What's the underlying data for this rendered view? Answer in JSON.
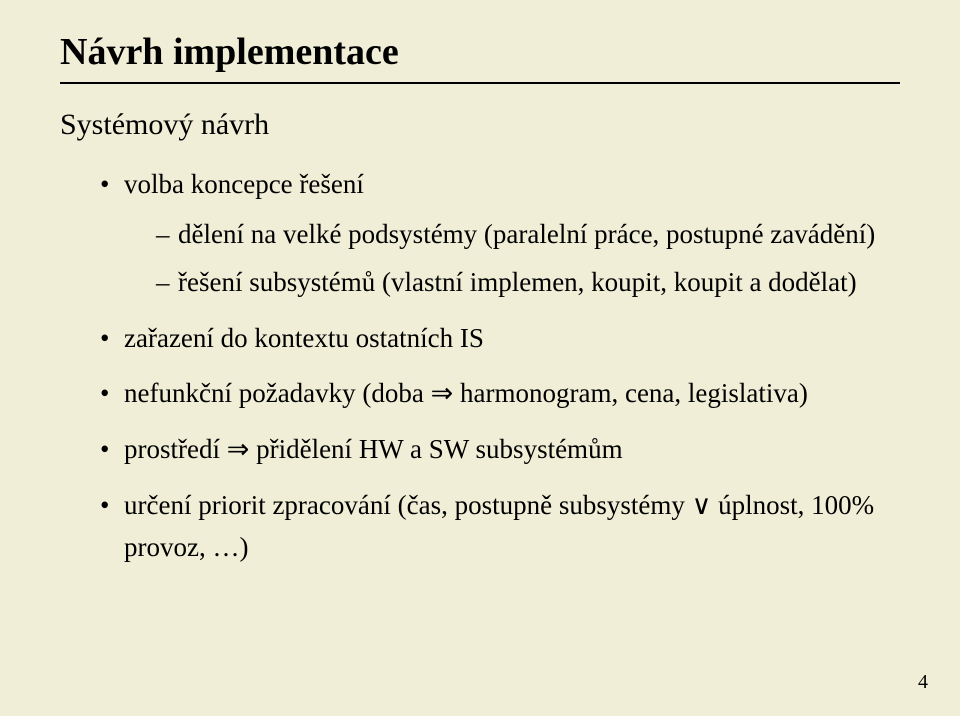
{
  "title": "Návrh implementace",
  "subtitle": "Systémový návrh",
  "bullets": {
    "b1": "volba koncepce řešení",
    "b1_subs": {
      "s1": "dělení na velké podsystémy (paralelní práce, postupné zavádění)",
      "s2": "řešení subsystémů (vlastní implemen, koupit, koupit a dodělat)"
    },
    "b2": "zařazení do kontextu ostatních IS",
    "b3": "nefunkční požadavky (doba ⇒ harmonogram, cena, legislativa)",
    "b4": "prostředí ⇒ přidělení HW a SW subsystémům",
    "b5": "určení priorit zpracování (čas, postupně subsystémy ∨ úplnost, 100% provoz, …)"
  },
  "page": "4",
  "colors": {
    "background": "#f0eed6",
    "text": "#000000",
    "rule": "#000000"
  },
  "typography": {
    "family": "Times New Roman",
    "title_size_pt": 28,
    "subtitle_size_pt": 22,
    "body_size_pt": 20
  }
}
